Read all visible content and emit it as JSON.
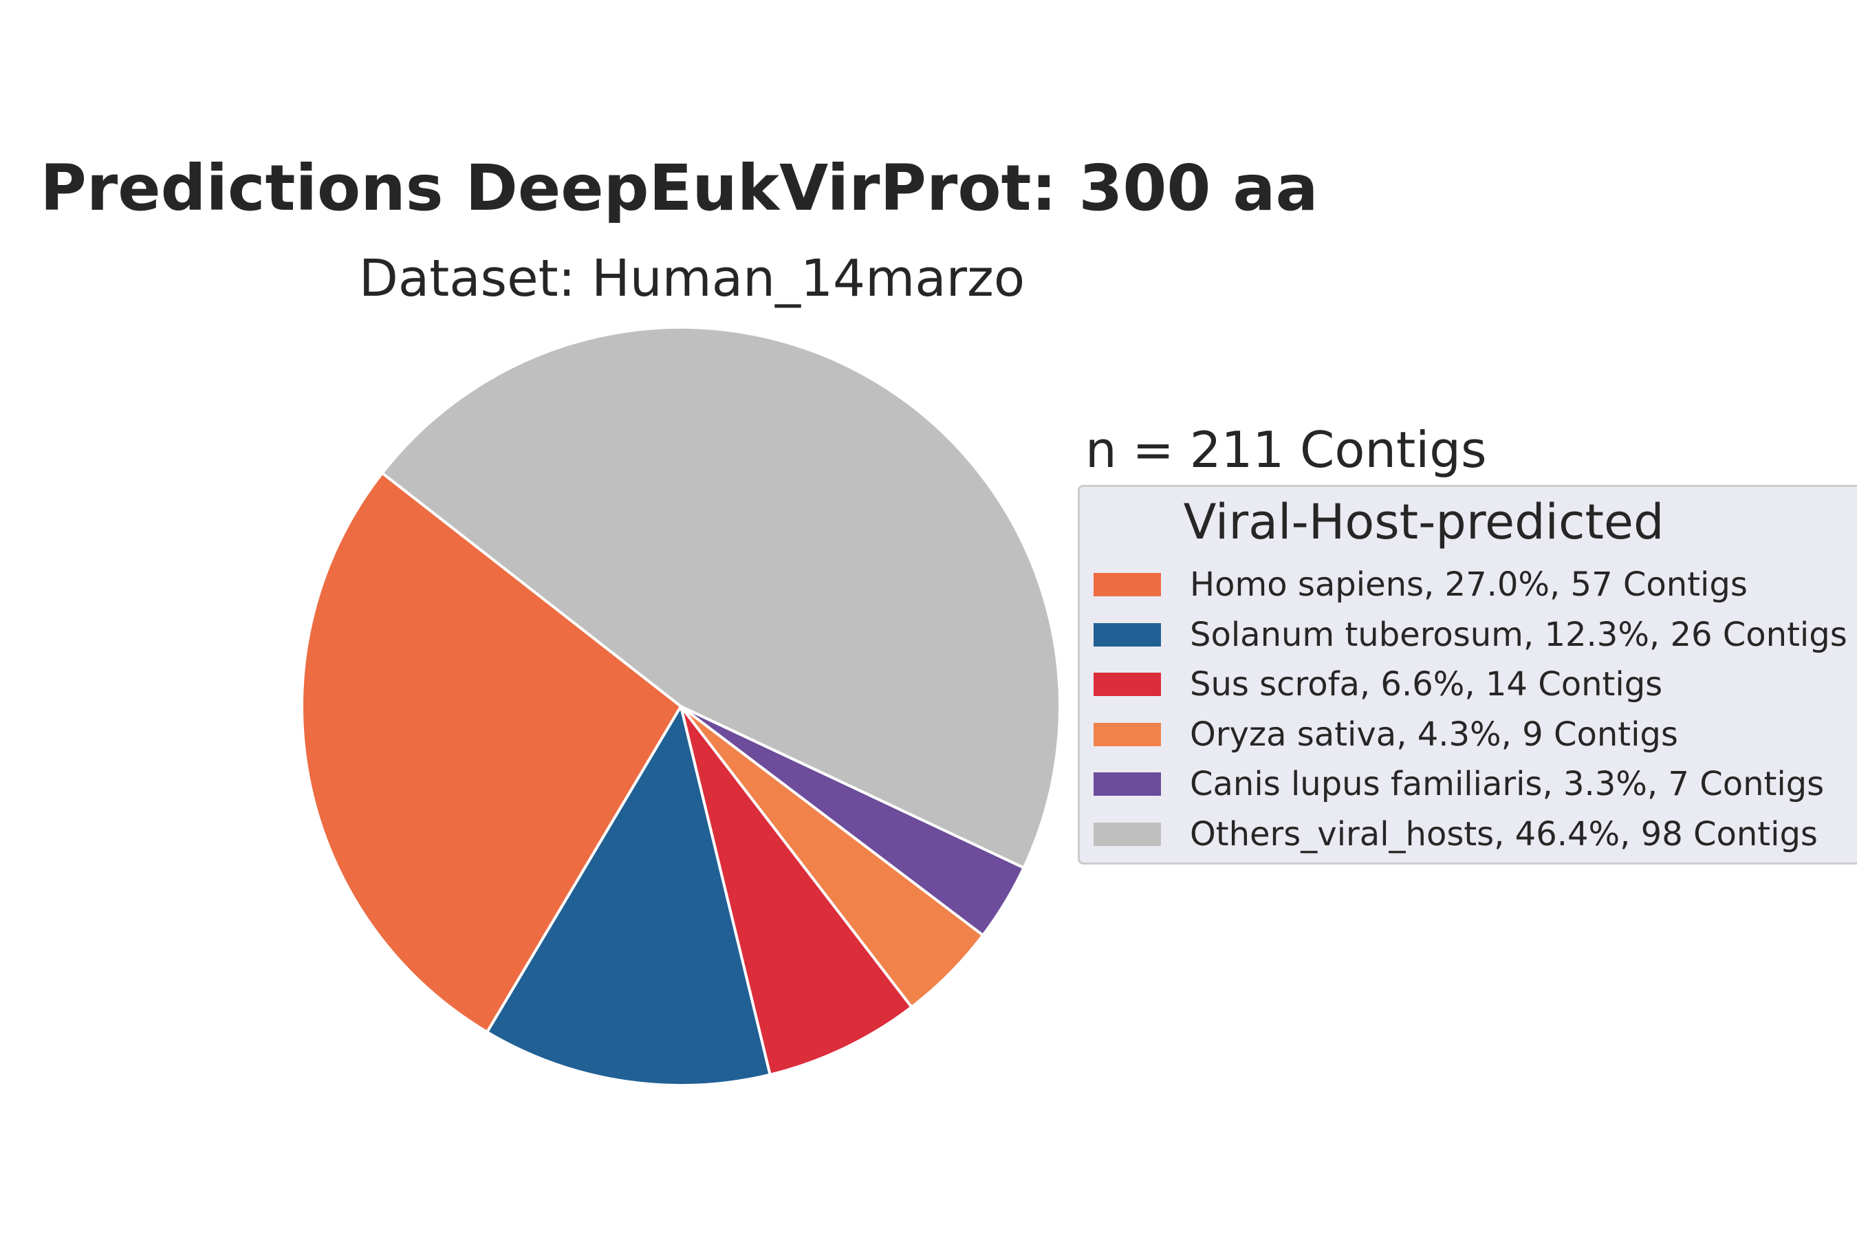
{
  "chart_data": {
    "type": "pie",
    "title": "Predictions DeepEukVirProt: 300 aa",
    "subtitle": "Dataset: Human_14marzo",
    "annotation": "n = 211 Contigs",
    "legend_title": "Viral-Host-predicted",
    "legend_position": "right",
    "start_angle_deg": 142,
    "direction": "counterclockwise",
    "slices": [
      {
        "label": "Homo sapiens, 27.0%, 57 Contigs",
        "value": 57,
        "percent": 27.0,
        "color": "#ed6c42"
      },
      {
        "label": "Solanum tuberosum, 12.3%, 26 Contigs",
        "value": 26,
        "percent": 12.3,
        "color": "#216094"
      },
      {
        "label": "Sus scrofa, 6.6%, 14 Contigs",
        "value": 14,
        "percent": 6.6,
        "color": "#dc2d3b"
      },
      {
        "label": "Oryza sativa, 4.3%, 9 Contigs",
        "value": 9,
        "percent": 4.3,
        "color": "#f0824a"
      },
      {
        "label": "Canis lupus familiaris, 3.3%, 7 Contigs",
        "value": 7,
        "percent": 3.3,
        "color": "#6c4c9b"
      },
      {
        "label": "Others_viral_hosts, 46.4%, 98 Contigs",
        "value": 98,
        "percent": 46.4,
        "color": "#bfbfbf"
      }
    ]
  }
}
